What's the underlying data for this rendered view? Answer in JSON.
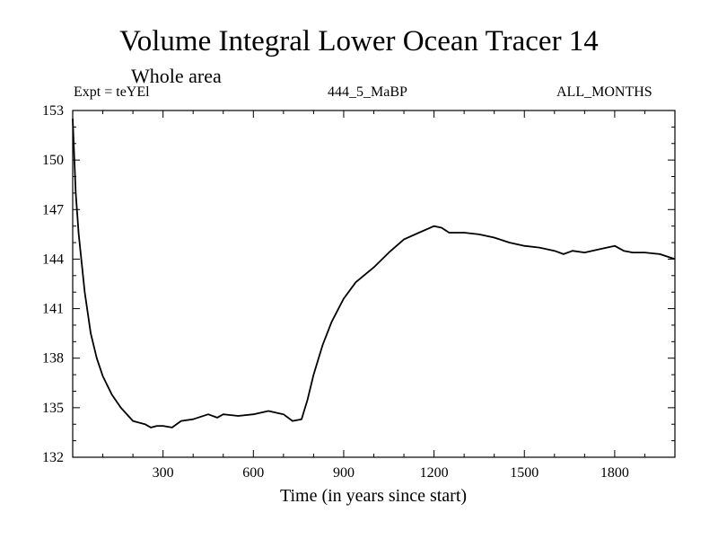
{
  "header": {
    "title": "Volume Integral Lower Ocean Tracer 14",
    "subtitle": "Whole area",
    "expt": "Expt = teYEl",
    "run": "444_5_MaBP",
    "months": "ALL_MONTHS"
  },
  "chart_data": {
    "type": "line",
    "title": "Volume Integral Lower Ocean Tracer 14",
    "subtitle": "Whole area",
    "xlabel": "Time (in years since start)",
    "ylabel": "",
    "xlim": [
      0,
      2000
    ],
    "ylim": [
      132,
      153
    ],
    "xticks": [
      300,
      600,
      900,
      1200,
      1500,
      1800
    ],
    "yticks": [
      132,
      135,
      138,
      141,
      144,
      147,
      150,
      153
    ],
    "grid": false,
    "line_color": "#000000",
    "series": [
      {
        "name": "Lower Ocean Tracer 14",
        "x": [
          0,
          10,
          20,
          40,
          60,
          80,
          100,
          130,
          160,
          200,
          240,
          260,
          280,
          300,
          330,
          360,
          400,
          450,
          480,
          500,
          550,
          600,
          650,
          700,
          730,
          760,
          780,
          800,
          830,
          860,
          900,
          940,
          1000,
          1050,
          1100,
          1150,
          1200,
          1225,
          1250,
          1300,
          1350,
          1400,
          1450,
          1500,
          1550,
          1600,
          1630,
          1660,
          1700,
          1750,
          1800,
          1830,
          1860,
          1900,
          1950,
          2000
        ],
        "y": [
          152.5,
          148.0,
          145.5,
          142.0,
          139.5,
          138.0,
          136.9,
          135.8,
          135.0,
          134.2,
          134.0,
          133.8,
          133.9,
          133.9,
          133.8,
          134.2,
          134.3,
          134.6,
          134.4,
          134.6,
          134.5,
          134.6,
          134.8,
          134.6,
          134.2,
          134.3,
          135.5,
          137.0,
          138.8,
          140.2,
          141.6,
          142.6,
          143.5,
          144.4,
          145.2,
          145.6,
          146.0,
          145.9,
          145.6,
          145.6,
          145.5,
          145.3,
          145.0,
          144.8,
          144.7,
          144.5,
          144.3,
          144.5,
          144.4,
          144.6,
          144.8,
          144.5,
          144.4,
          144.4,
          144.3,
          144.0
        ]
      }
    ]
  }
}
